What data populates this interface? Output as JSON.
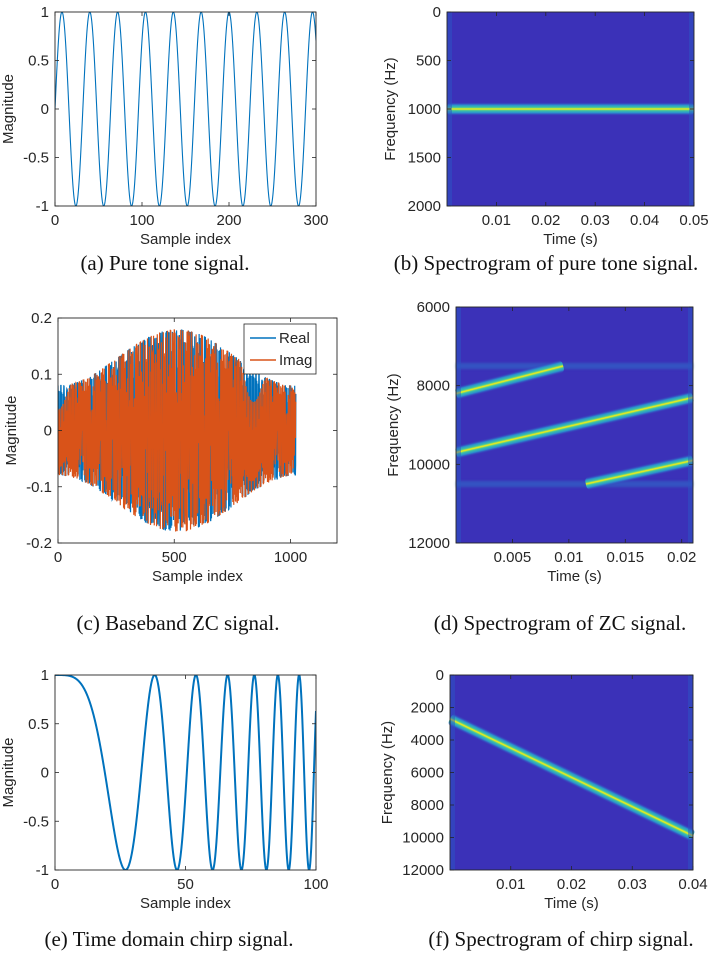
{
  "colors": {
    "blue": "#0072BD",
    "orange": "#D95319",
    "spec_bg": "#3B31B8",
    "axis": "#262626"
  },
  "chart_data": [
    {
      "id": "a",
      "type": "line",
      "title": "",
      "caption": "(a)  Pure tone signal.",
      "xlabel": "Sample index",
      "ylabel": "Magnitude",
      "xlim": [
        0,
        300
      ],
      "ylim": [
        -1,
        1
      ],
      "xticks": [
        0,
        100,
        200,
        300
      ],
      "xtick_labels": [
        "0",
        "100",
        "200",
        "300"
      ],
      "yticks": [
        1,
        0.5,
        0,
        -0.5,
        -1
      ],
      "ytick_labels": [
        "1",
        "0.5",
        "0",
        "-0.5",
        "-1"
      ],
      "series": [
        {
          "name": "Pure tone",
          "color": "#0072BD",
          "formula": "sin(2*pi*n/32)",
          "cycles_per_sample": 0.03125,
          "n_start": 0,
          "n_end": 300
        }
      ]
    },
    {
      "id": "b",
      "type": "heatmap",
      "caption": "(b)  Spectrogram of pure tone signal.",
      "xlabel": "Time (s)",
      "ylabel": "Frequency (Hz)",
      "xlim": [
        0,
        0.05
      ],
      "ylim": [
        0,
        2000
      ],
      "y_reversed": true,
      "xticks": [
        0.01,
        0.02,
        0.03,
        0.04,
        0.05
      ],
      "xtick_labels": [
        "0.01",
        "0.02",
        "0.03",
        "0.04",
        "0.05"
      ],
      "yticks": [
        0,
        500,
        1000,
        1500,
        2000
      ],
      "ytick_labels": [
        "0",
        "500",
        "1000",
        "1500",
        "2000"
      ],
      "ridges": [
        {
          "t0": 0.0,
          "f0": 1000,
          "t1": 0.05,
          "f1": 1000
        }
      ]
    },
    {
      "id": "c",
      "type": "line",
      "caption": "(c)  Baseband ZC signal.",
      "xlabel": "Sample index",
      "ylabel": "Magnitude",
      "xlim": [
        0,
        1200
      ],
      "ylim": [
        -0.2,
        0.2
      ],
      "xticks": [
        0,
        500,
        1000
      ],
      "xtick_labels": [
        "0",
        "500",
        "1000"
      ],
      "yticks": [
        0.2,
        0.1,
        0,
        -0.1,
        -0.2
      ],
      "ytick_labels": [
        "0.2",
        "0.1",
        "0",
        "-0.1",
        "-0.2"
      ],
      "legend_position": "top-right",
      "series": [
        {
          "name": "Real",
          "color": "#0072BD",
          "n_samples": 1024
        },
        {
          "name": "Imag",
          "color": "#D95319",
          "n_samples": 1024
        }
      ]
    },
    {
      "id": "d",
      "type": "heatmap",
      "caption": "(d)  Spectrogram of ZC signal.",
      "xlabel": "Time (s)",
      "ylabel": "Frequency (Hz)",
      "xlim": [
        0,
        0.021
      ],
      "ylim": [
        6000,
        12000
      ],
      "y_reversed": true,
      "xticks": [
        0.005,
        0.01,
        0.015,
        0.02
      ],
      "xtick_labels": [
        "0.005",
        "0.01",
        "0.015",
        "0.02"
      ],
      "yticks": [
        6000,
        8000,
        10000,
        12000
      ],
      "ytick_labels": [
        "6000",
        "8000",
        "10000",
        "12000"
      ],
      "ridges": [
        {
          "t0": 0.0,
          "f0": 8200,
          "t1": 0.0095,
          "f1": 7500
        },
        {
          "t0": 0.0,
          "f0": 9700,
          "t1": 0.021,
          "f1": 8300
        },
        {
          "t0": 0.0115,
          "f0": 10500,
          "t1": 0.021,
          "f1": 9900
        }
      ],
      "bands": [
        {
          "freq": 7500
        },
        {
          "freq": 10500
        }
      ]
    },
    {
      "id": "e",
      "type": "line",
      "caption": "(e)  Time domain chirp signal.",
      "xlabel": "Sample index",
      "ylabel": "Magnitude",
      "xlim": [
        0,
        100
      ],
      "ylim": [
        -1,
        1
      ],
      "xticks": [
        0,
        50,
        100
      ],
      "xtick_labels": [
        "0",
        "50",
        "100"
      ],
      "yticks": [
        1,
        0.5,
        0,
        -0.5,
        -1
      ],
      "ytick_labels": [
        "1",
        "0.5",
        "0",
        "-0.5",
        "-1"
      ],
      "series": [
        {
          "name": "Chirp",
          "color": "#0072BD",
          "formula": "cos(pi*k*n^2)",
          "k": 0.0013717,
          "n_start": 0,
          "n_end": 100
        }
      ]
    },
    {
      "id": "f",
      "type": "heatmap",
      "caption": "(f)  Spectrogram of chirp signal.",
      "xlabel": "Time (s)",
      "ylabel": "Frequency (Hz)",
      "xlim": [
        0,
        0.04
      ],
      "ylim": [
        0,
        12000
      ],
      "y_reversed": true,
      "xticks": [
        0.01,
        0.02,
        0.03,
        0.04
      ],
      "xtick_labels": [
        "0.01",
        "0.02",
        "0.03",
        "0.04"
      ],
      "yticks": [
        0,
        2000,
        4000,
        6000,
        8000,
        10000,
        12000
      ],
      "ytick_labels": [
        "0",
        "2000",
        "4000",
        "6000",
        "8000",
        "10000",
        "12000"
      ],
      "ridges": [
        {
          "t0": 0.0,
          "f0": 2700,
          "t1": 0.04,
          "f1": 9900
        }
      ]
    }
  ]
}
